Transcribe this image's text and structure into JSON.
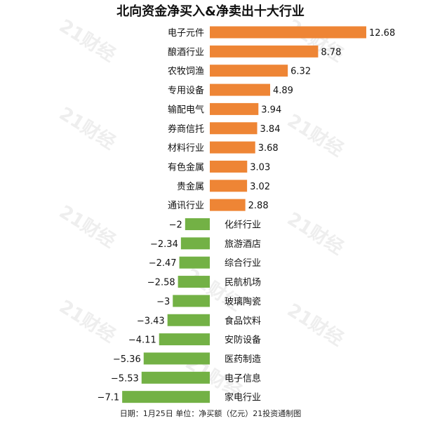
{
  "chart_data": {
    "type": "bar",
    "orientation": "horizontal",
    "title": "北向资金净买入&净卖出十大行业",
    "categories": [
      "电子元件",
      "酿酒行业",
      "农牧饲渔",
      "专用设备",
      "输配电气",
      "券商信托",
      "材料行业",
      "有色金属",
      "贵金属",
      "通讯行业",
      "化纤行业",
      "旅游酒店",
      "综合行业",
      "民航机场",
      "玻璃陶瓷",
      "食品饮料",
      "安防设备",
      "医药制造",
      "电子信息",
      "家电行业"
    ],
    "values": [
      12.68,
      8.78,
      6.32,
      4.89,
      3.94,
      3.84,
      3.68,
      3.03,
      3.02,
      2.88,
      -2,
      -2.34,
      -2.47,
      -2.58,
      -3,
      -3.43,
      -4.11,
      -5.36,
      -5.53,
      -7.1
    ],
    "value_labels": [
      "12.68",
      "8.78",
      "6.32",
      "4.89",
      "3.94",
      "3.84",
      "3.68",
      "3.03",
      "3.02",
      "2.88",
      "−2",
      "−2.34",
      "−2.47",
      "−2.58",
      "−3",
      "−3.43",
      "−4.11",
      "−5.36",
      "−5.53",
      "−7.1"
    ],
    "colors": {
      "positive": "#ee8535",
      "negative": "#73b145"
    },
    "grid": false,
    "legend": "none"
  },
  "footer": "日期：1月25日 单位：净买额（亿元）21投资通制图",
  "watermark": "21财经"
}
